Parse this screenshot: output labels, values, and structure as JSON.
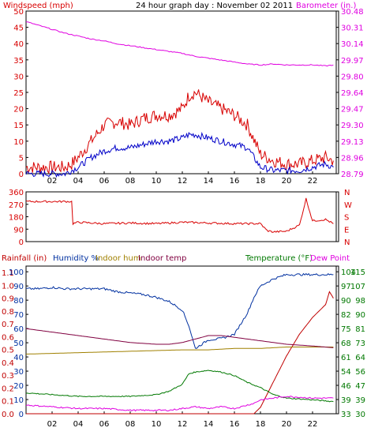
{
  "header": {
    "windspeed_label": "Windspeed (mph)",
    "title": "24 hour graph day : November 02 2011",
    "barometer_label": "Barometer (in.)"
  },
  "colors": {
    "wind_speed": "#d80000",
    "wind_avg": "#0000c8",
    "barometer": "#e000e0",
    "direction": "#d80000",
    "rainfall": "#c00000",
    "humidity": "#0030a0",
    "indoor_hum": "#a08000",
    "indoor_temp": "#800040",
    "temperature": "#007800",
    "dew_point": "#e000e0",
    "frame": "#000000",
    "grid": "#000000",
    "cursor": "#000000"
  },
  "bottom_legend": {
    "rainfall": "Rainfall (in)",
    "humidity": "Humidity %",
    "indoor_hum": "Indoor hum",
    "indoor_temp": "Indoor temp",
    "temperature": "Temperature (°F)",
    "dew_point": "Dew Point"
  },
  "chart_data": [
    {
      "type": "line",
      "name": "wind-barometer",
      "x_ticks": [
        "02",
        "04",
        "06",
        "08",
        "10",
        "12",
        "14",
        "16",
        "18",
        "20",
        "22"
      ],
      "xlim": [
        0,
        24
      ],
      "y_left_ticks": [
        "0",
        "5",
        "10",
        "15",
        "20",
        "25",
        "30",
        "35",
        "40",
        "45",
        "50"
      ],
      "ylim_left": [
        0,
        50
      ],
      "y_right_ticks": [
        "28.79",
        "28.96",
        "29.13",
        "29.30",
        "29.47",
        "29.64",
        "29.80",
        "29.97",
        "30.14",
        "30.31",
        "30.48"
      ],
      "ylim_right": [
        28.79,
        30.48
      ],
      "series": [
        {
          "axis": "left",
          "x": [
            0,
            1,
            2,
            3,
            3.5,
            4,
            5,
            6,
            7,
            8,
            9,
            10,
            11,
            12,
            12.5,
            13,
            14,
            15,
            16,
            17,
            18,
            19,
            20,
            21,
            22,
            23,
            23.6
          ],
          "y": [
            2,
            2,
            2,
            2,
            3,
            5,
            10,
            15,
            16,
            15,
            17,
            18,
            18,
            20,
            24,
            25,
            22,
            20,
            18,
            15,
            6,
            4,
            3,
            3,
            4,
            5,
            4
          ]
        },
        {
          "axis": "left",
          "x": [
            0,
            1,
            2,
            3,
            3.5,
            4,
            5,
            6,
            7,
            8,
            9,
            10,
            11,
            12,
            12.5,
            13,
            14,
            15,
            16,
            17,
            18,
            19,
            20,
            21,
            22,
            23,
            23.6
          ],
          "y": [
            0,
            0,
            0,
            0,
            1,
            2,
            5,
            7,
            8,
            8,
            9,
            10,
            10,
            11,
            12,
            12,
            11,
            10,
            9,
            8,
            2,
            1,
            1,
            1,
            2,
            3,
            2
          ]
        },
        {
          "axis": "right",
          "x": [
            0,
            1,
            2,
            3,
            4,
            5,
            6,
            7,
            8,
            9,
            10,
            11,
            12,
            13,
            14,
            15,
            16,
            17,
            18,
            19,
            20,
            21,
            22,
            23,
            23.6
          ],
          "y": [
            30.37,
            30.33,
            30.29,
            30.25,
            30.22,
            30.19,
            30.17,
            30.14,
            30.12,
            30.1,
            30.08,
            30.06,
            30.04,
            30.01,
            29.99,
            29.97,
            29.95,
            29.93,
            29.92,
            29.93,
            29.92,
            29.92,
            29.92,
            29.91,
            29.92
          ]
        }
      ]
    },
    {
      "type": "line",
      "name": "wind-direction",
      "x_ticks": [],
      "xlim": [
        0,
        24
      ],
      "y_left_ticks": [
        "0",
        "90",
        "180",
        "270",
        "360"
      ],
      "ylim": [
        0,
        360
      ],
      "y_right_ticks": [
        "N",
        "E",
        "S",
        "W",
        "N"
      ],
      "series": [
        {
          "x": [
            0,
            2,
            3.5,
            3.6,
            4,
            6,
            8,
            10,
            12,
            14,
            16,
            17,
            18,
            18.5,
            19,
            20,
            21,
            21.5,
            22,
            23,
            23.6
          ],
          "y": [
            290,
            290,
            290,
            130,
            140,
            130,
            135,
            130,
            140,
            135,
            130,
            130,
            130,
            80,
            70,
            75,
            120,
            310,
            150,
            160,
            130
          ]
        }
      ]
    },
    {
      "type": "line",
      "name": "rain-humidity-temperature",
      "x_ticks": [
        "02",
        "04",
        "06",
        "08",
        "10",
        "12",
        "14",
        "16",
        "18",
        "20",
        "22"
      ],
      "xlim": [
        0,
        24
      ],
      "y_left_outer_ticks": [
        "0.0",
        "0.1",
        "0.2",
        "0.3",
        "0.4",
        "0.5",
        "0.6",
        "0.7",
        "0.8",
        "0.9",
        "1.0",
        "1.1"
      ],
      "ylim_left_outer": [
        0,
        1.15
      ],
      "y_left_inner_ticks": [
        "0",
        "10",
        "20",
        "30",
        "40",
        "50",
        "60",
        "70",
        "80",
        "90",
        "100"
      ],
      "ylim_left_inner": [
        0,
        104
      ],
      "y_right_inner_ticks": [
        "33",
        "39",
        "46",
        "54",
        "61",
        "68",
        "75",
        "82",
        "90",
        "97",
        "104"
      ],
      "y_right_outer_ticks": [
        "30",
        "39",
        "47",
        "56",
        "64",
        "73",
        "81",
        "90",
        "98",
        "107",
        "115"
      ],
      "ylim_right_outer": [
        30,
        115
      ],
      "series": [
        {
          "label": "rainfall",
          "axis": "left_outer",
          "x": [
            0,
            17.5,
            18.0,
            19,
            20,
            21,
            22,
            23,
            23.3,
            23.6
          ],
          "y": [
            0,
            0,
            0.05,
            0.25,
            0.45,
            0.62,
            0.75,
            0.85,
            0.95,
            0.9
          ]
        },
        {
          "label": "humidity",
          "axis": "left_inner",
          "x": [
            0,
            1,
            2,
            3,
            4,
            5,
            6,
            7,
            8,
            9,
            10,
            11,
            12,
            12.5,
            13,
            14,
            15,
            16,
            17,
            17.5,
            18,
            19,
            20,
            21,
            22,
            23,
            23.6
          ],
          "y": [
            88,
            88,
            89,
            88,
            88,
            88,
            88,
            86,
            85,
            84,
            82,
            79,
            73,
            62,
            46,
            52,
            53,
            56,
            71,
            82,
            90,
            95,
            98,
            98,
            98,
            98,
            98
          ]
        },
        {
          "label": "indoor_hum",
          "axis": "left_inner",
          "x": [
            0,
            4,
            8,
            12,
            14,
            16,
            18,
            20,
            22,
            23.6
          ],
          "y": [
            42,
            43,
            44,
            45,
            45,
            46,
            46,
            47,
            47,
            47
          ]
        },
        {
          "label": "indoor_temp",
          "axis": "right_outer",
          "x": [
            0,
            2,
            4,
            6,
            8,
            10,
            11,
            12,
            13,
            14,
            15,
            16,
            17,
            18,
            19,
            20,
            22,
            23.6
          ],
          "y": [
            79,
            77,
            75,
            73,
            71,
            70,
            70,
            71,
            73,
            75,
            75,
            74,
            73,
            72,
            71,
            70,
            69,
            68
          ]
        },
        {
          "label": "temperature",
          "axis": "right_outer",
          "x": [
            0,
            2,
            4,
            6,
            8,
            10,
            11,
            12,
            12.5,
            13,
            14,
            15,
            16,
            17,
            18,
            19,
            20,
            22,
            23.6
          ],
          "y": [
            42,
            41,
            40,
            40,
            40,
            41,
            43,
            47,
            53,
            54,
            55,
            54,
            52,
            48,
            45,
            41,
            39,
            38,
            37
          ]
        },
        {
          "label": "dew_point",
          "axis": "right_outer",
          "x": [
            0,
            2,
            4,
            6,
            8,
            10,
            11,
            12,
            13,
            14,
            15,
            16,
            17,
            17.5,
            18,
            19,
            20,
            22,
            23.6
          ],
          "y": [
            35,
            34,
            33,
            33,
            32,
            32,
            32,
            33,
            34,
            33,
            34,
            33,
            35,
            36,
            38,
            39,
            40,
            39,
            39
          ]
        }
      ]
    }
  ]
}
